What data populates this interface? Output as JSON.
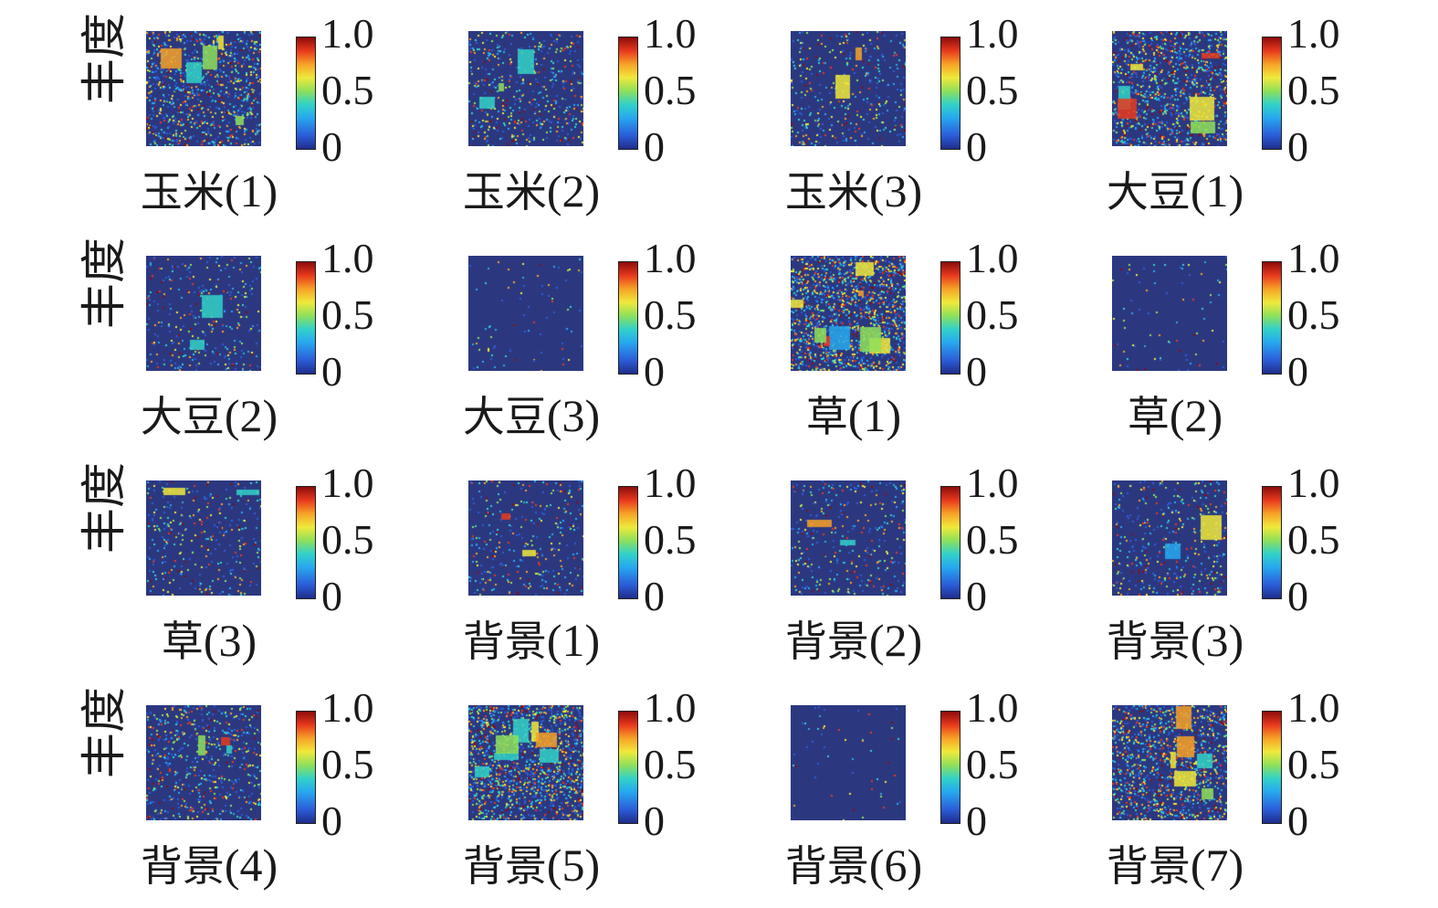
{
  "ylabel": "丰度",
  "colorbar_ticks": [
    "1.0",
    "0.5",
    "0"
  ],
  "colormap": [
    "#1f2d8a",
    "#2b5cd8",
    "#27a8ef",
    "#32d2c8",
    "#8fe05a",
    "#f0e93b",
    "#f7a227",
    "#e8391d",
    "#8c0c0c"
  ],
  "background_color": "#2b3880",
  "panels": [
    {
      "name": "玉米",
      "index": "(1)"
    },
    {
      "name": "玉米",
      "index": "(2)"
    },
    {
      "name": "玉米",
      "index": "(3)"
    },
    {
      "name": "大豆",
      "index": "(1)"
    },
    {
      "name": "大豆",
      "index": "(2)"
    },
    {
      "name": "大豆",
      "index": "(3)"
    },
    {
      "name": "草",
      "index": "(1)"
    },
    {
      "name": "草",
      "index": "(2)"
    },
    {
      "name": "草",
      "index": "(3)"
    },
    {
      "name": "背景",
      "index": "(1)"
    },
    {
      "name": "背景",
      "index": "(2)"
    },
    {
      "name": "背景",
      "index": "(3)"
    },
    {
      "name": "背景",
      "index": "(4)"
    },
    {
      "name": "背景",
      "index": "(5)"
    },
    {
      "name": "背景",
      "index": "(6)"
    },
    {
      "name": "背景",
      "index": "(7)"
    }
  ],
  "chart_data": {
    "type": "heatmap",
    "rows": 4,
    "cols": 4,
    "value_range": [
      0,
      1.0
    ],
    "maps": [
      "玉米(1)",
      "玉米(2)",
      "玉米(3)",
      "大豆(1)",
      "大豆(2)",
      "大豆(3)",
      "草(1)",
      "草(2)",
      "草(3)",
      "背景(1)",
      "背景(2)",
      "背景(3)",
      "背景(4)",
      "背景(5)",
      "背景(6)",
      "背景(7)"
    ],
    "colorbar_ticks": [
      1.0,
      0.5,
      0
    ]
  }
}
